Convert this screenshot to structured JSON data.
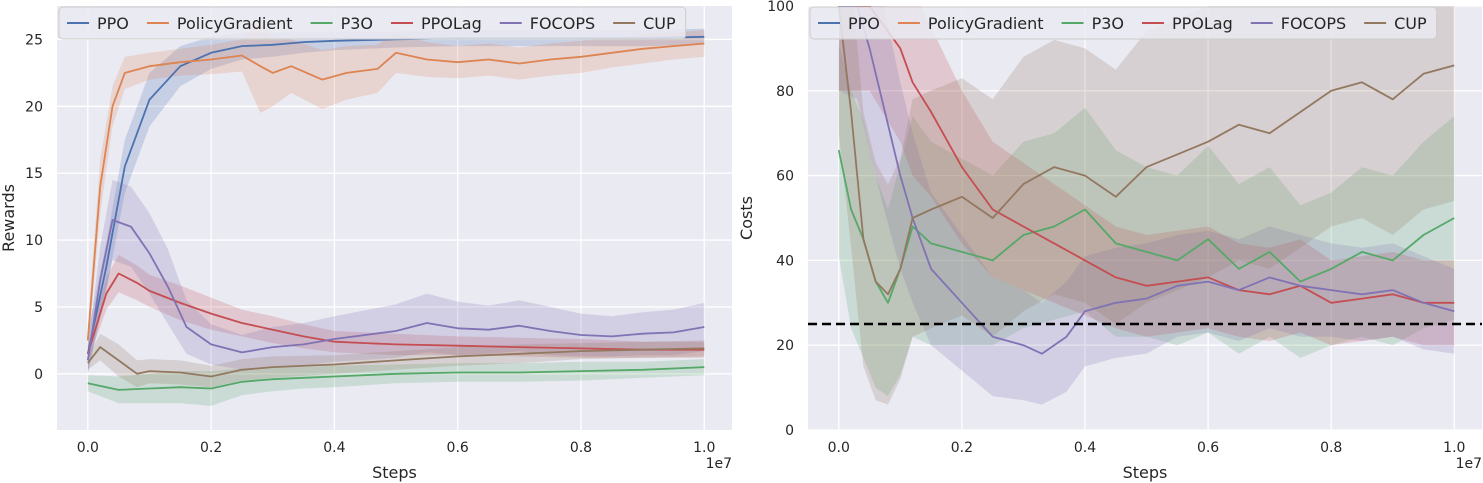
{
  "chart_data": [
    {
      "type": "line",
      "xlabel": "Steps",
      "ylabel": "Rewards",
      "x_offset_label": "1e7",
      "xlim": [
        -0.05,
        1.045
      ],
      "ylim": [
        -4.2,
        27.5
      ],
      "xticks": [
        0.0,
        0.2,
        0.4,
        0.6,
        0.8,
        1.0
      ],
      "xtick_labels": [
        "0.0",
        "0.2",
        "0.4",
        "0.6",
        "0.8",
        "1.0"
      ],
      "yticks": [
        0,
        5,
        10,
        15,
        20,
        25
      ],
      "ytick_labels": [
        "0",
        "5",
        "10",
        "15",
        "20",
        "25"
      ],
      "grid": true,
      "legend_position": "top",
      "series": [
        {
          "name": "PPO",
          "color": "#4c72b0",
          "x": [
            0.0,
            0.03,
            0.06,
            0.1,
            0.15,
            0.2,
            0.25,
            0.3,
            0.35,
            0.4,
            0.5,
            0.6,
            0.7,
            0.8,
            0.9,
            1.0
          ],
          "y": [
            1.5,
            8.0,
            15.5,
            20.5,
            23.0,
            24.0,
            24.5,
            24.6,
            24.8,
            24.9,
            25.0,
            25.1,
            25.1,
            25.1,
            25.1,
            25.2
          ],
          "band": [
            1.5,
            1.8,
            2.0,
            2.0,
            1.5,
            1.2,
            1.0,
            0.9,
            0.8,
            0.7,
            0.6,
            0.6,
            0.6,
            0.6,
            0.6,
            0.6
          ]
        },
        {
          "name": "PolicyGradient",
          "color": "#dd8452",
          "x": [
            0.0,
            0.02,
            0.04,
            0.06,
            0.1,
            0.15,
            0.2,
            0.25,
            0.28,
            0.3,
            0.33,
            0.38,
            0.42,
            0.47,
            0.5,
            0.55,
            0.6,
            0.65,
            0.7,
            0.75,
            0.8,
            0.85,
            0.9,
            0.95,
            1.0
          ],
          "y": [
            2.5,
            14.0,
            20.0,
            22.5,
            23.0,
            23.3,
            23.5,
            23.8,
            23.0,
            22.5,
            23.0,
            22.0,
            22.5,
            22.8,
            24.0,
            23.5,
            23.3,
            23.5,
            23.2,
            23.5,
            23.7,
            24.0,
            24.3,
            24.5,
            24.7
          ],
          "band": [
            1.0,
            2.0,
            1.5,
            1.2,
            1.0,
            1.0,
            1.1,
            1.2,
            3.5,
            2.5,
            2.0,
            2.2,
            2.0,
            1.8,
            1.5,
            1.3,
            1.2,
            1.2,
            1.2,
            1.2,
            1.2,
            1.1,
            1.1,
            1.0,
            1.0
          ]
        },
        {
          "name": "P3O",
          "color": "#55a868",
          "x": [
            0.0,
            0.05,
            0.1,
            0.15,
            0.2,
            0.25,
            0.3,
            0.35,
            0.4,
            0.5,
            0.6,
            0.7,
            0.8,
            0.9,
            1.0
          ],
          "y": [
            -0.7,
            -1.2,
            -1.1,
            -1.0,
            -1.1,
            -0.6,
            -0.4,
            -0.3,
            -0.2,
            0.0,
            0.1,
            0.1,
            0.2,
            0.3,
            0.5
          ],
          "band": [
            0.6,
            1.0,
            1.1,
            1.2,
            1.3,
            1.0,
            0.9,
            0.8,
            0.8,
            0.7,
            0.7,
            0.7,
            0.7,
            0.6,
            0.6
          ]
        },
        {
          "name": "PPOLag",
          "color": "#c44e52",
          "x": [
            0.0,
            0.03,
            0.05,
            0.08,
            0.1,
            0.15,
            0.2,
            0.25,
            0.3,
            0.35,
            0.4,
            0.45,
            0.5,
            0.6,
            0.7,
            0.8,
            0.9,
            1.0
          ],
          "y": [
            1.5,
            6.0,
            7.5,
            6.8,
            6.2,
            5.3,
            4.5,
            3.8,
            3.3,
            2.8,
            2.4,
            2.3,
            2.2,
            2.1,
            2.0,
            1.9,
            1.8,
            1.8
          ],
          "band": [
            0.6,
            1.2,
            1.4,
            1.3,
            1.2,
            1.3,
            1.2,
            1.0,
            1.0,
            0.9,
            0.8,
            0.8,
            0.8,
            0.7,
            0.7,
            0.7,
            0.6,
            0.6
          ]
        },
        {
          "name": "FOCOPS",
          "color": "#8172b3",
          "x": [
            0.0,
            0.02,
            0.04,
            0.07,
            0.1,
            0.13,
            0.16,
            0.2,
            0.25,
            0.3,
            0.35,
            0.4,
            0.5,
            0.55,
            0.6,
            0.65,
            0.7,
            0.75,
            0.8,
            0.85,
            0.9,
            0.95,
            1.0
          ],
          "y": [
            1.0,
            7.0,
            11.5,
            11.0,
            9.0,
            6.5,
            3.5,
            2.2,
            1.6,
            2.0,
            2.2,
            2.6,
            3.2,
            3.8,
            3.4,
            3.3,
            3.6,
            3.2,
            2.9,
            2.8,
            3.0,
            3.1,
            3.5
          ],
          "band": [
            1.0,
            2.5,
            3.0,
            3.0,
            3.0,
            2.8,
            2.0,
            1.5,
            1.3,
            1.5,
            1.6,
            1.7,
            2.0,
            2.2,
            2.0,
            1.8,
            1.9,
            1.8,
            1.6,
            1.5,
            1.6,
            1.7,
            1.8
          ]
        },
        {
          "name": "CUP",
          "color": "#937860",
          "x": [
            0.0,
            0.02,
            0.05,
            0.08,
            0.1,
            0.15,
            0.2,
            0.25,
            0.3,
            0.4,
            0.5,
            0.6,
            0.7,
            0.8,
            0.9,
            1.0
          ],
          "y": [
            0.8,
            2.0,
            1.0,
            0.0,
            0.2,
            0.1,
            -0.2,
            0.3,
            0.5,
            0.7,
            1.0,
            1.3,
            1.5,
            1.7,
            1.8,
            1.9
          ],
          "band": [
            0.5,
            1.0,
            1.2,
            1.0,
            0.9,
            0.9,
            0.8,
            0.8,
            0.8,
            0.7,
            0.7,
            0.7,
            0.7,
            0.6,
            0.6,
            0.6
          ]
        }
      ]
    },
    {
      "type": "line",
      "xlabel": "Steps",
      "ylabel": "Costs",
      "x_offset_label": "1e7",
      "xlim": [
        -0.05,
        1.045
      ],
      "ylim": [
        0,
        100
      ],
      "xticks": [
        0.0,
        0.2,
        0.4,
        0.6,
        0.8,
        1.0
      ],
      "xtick_labels": [
        "0.0",
        "0.2",
        "0.4",
        "0.6",
        "0.8",
        "1.0"
      ],
      "yticks": [
        0,
        20,
        40,
        60,
        80,
        100
      ],
      "ytick_labels": [
        "0",
        "20",
        "40",
        "60",
        "80",
        "100"
      ],
      "grid": true,
      "legend_position": "top",
      "threshold": {
        "value": 25,
        "style": "dashed",
        "color": "#000000"
      },
      "series": [
        {
          "name": "PPO",
          "color": "#4c72b0",
          "x": [],
          "y": [],
          "band": []
        },
        {
          "name": "PolicyGradient",
          "color": "#dd8452",
          "x": [],
          "y": [],
          "band": []
        },
        {
          "name": "P3O",
          "color": "#55a868",
          "x": [
            0.0,
            0.02,
            0.04,
            0.06,
            0.08,
            0.1,
            0.12,
            0.15,
            0.2,
            0.25,
            0.3,
            0.35,
            0.4,
            0.45,
            0.5,
            0.55,
            0.6,
            0.65,
            0.7,
            0.75,
            0.8,
            0.85,
            0.9,
            0.95,
            1.0
          ],
          "y": [
            66.0,
            52.0,
            45.0,
            35.0,
            30.0,
            38.0,
            48.0,
            44.0,
            42.0,
            40.0,
            46.0,
            48.0,
            52.0,
            44.0,
            42.0,
            40.0,
            45.0,
            38.0,
            42.0,
            35.0,
            38.0,
            42.0,
            40.0,
            46.0,
            50.0
          ],
          "band": [
            25,
            28,
            28,
            25,
            22,
            25,
            26,
            24,
            22,
            20,
            22,
            22,
            24,
            22,
            20,
            20,
            22,
            20,
            20,
            18,
            18,
            20,
            20,
            22,
            24
          ]
        },
        {
          "name": "PPOLag",
          "color": "#c44e52",
          "x": [
            0.0,
            0.05,
            0.1,
            0.12,
            0.15,
            0.2,
            0.25,
            0.3,
            0.35,
            0.4,
            0.45,
            0.5,
            0.55,
            0.6,
            0.65,
            0.7,
            0.75,
            0.8,
            0.85,
            0.9,
            0.95,
            1.0
          ],
          "y": [
            100.0,
            100.0,
            90.0,
            82.0,
            75.0,
            62.0,
            52.0,
            48.0,
            44.0,
            40.0,
            36.0,
            34.0,
            35.0,
            36.0,
            33.0,
            32.0,
            34.0,
            30.0,
            31.0,
            32.0,
            30.0,
            30.0
          ],
          "band": [
            20,
            20,
            22,
            22,
            20,
            18,
            16,
            15,
            14,
            13,
            12,
            12,
            12,
            12,
            11,
            11,
            11,
            10,
            10,
            10,
            10,
            10
          ]
        },
        {
          "name": "FOCOPS",
          "color": "#8172b3",
          "x": [
            0.0,
            0.03,
            0.05,
            0.07,
            0.1,
            0.12,
            0.15,
            0.2,
            0.25,
            0.3,
            0.33,
            0.37,
            0.4,
            0.45,
            0.5,
            0.55,
            0.6,
            0.65,
            0.7,
            0.75,
            0.8,
            0.85,
            0.9,
            0.95,
            1.0
          ],
          "y": [
            100.0,
            100.0,
            90.0,
            78.0,
            60.0,
            50.0,
            38.0,
            30.0,
            22.0,
            20.0,
            18.0,
            22.0,
            28.0,
            30.0,
            31.0,
            34.0,
            35.0,
            33.0,
            36.0,
            34.0,
            33.0,
            32.0,
            33.0,
            30.0,
            28.0
          ],
          "band": [
            20,
            22,
            24,
            24,
            22,
            20,
            18,
            16,
            14,
            13,
            12,
            13,
            13,
            13,
            13,
            12,
            12,
            12,
            12,
            12,
            11,
            11,
            11,
            11,
            10
          ]
        },
        {
          "name": "CUP",
          "color": "#937860",
          "x": [
            0.0,
            0.02,
            0.04,
            0.06,
            0.08,
            0.1,
            0.12,
            0.15,
            0.2,
            0.25,
            0.3,
            0.35,
            0.4,
            0.45,
            0.5,
            0.55,
            0.6,
            0.65,
            0.7,
            0.75,
            0.8,
            0.85,
            0.9,
            0.95,
            1.0
          ],
          "y": [
            100.0,
            75.0,
            45.0,
            35.0,
            32.0,
            38.0,
            50.0,
            52.0,
            55.0,
            50.0,
            58.0,
            62.0,
            60.0,
            55.0,
            62.0,
            65.0,
            68.0,
            72.0,
            70.0,
            75.0,
            80.0,
            82.0,
            78.0,
            84.0,
            86.0
          ],
          "band": [
            30,
            32,
            30,
            28,
            26,
            26,
            28,
            28,
            28,
            28,
            30,
            30,
            30,
            30,
            32,
            32,
            32,
            32,
            32,
            32,
            32,
            32,
            32,
            32,
            32
          ]
        }
      ]
    }
  ]
}
